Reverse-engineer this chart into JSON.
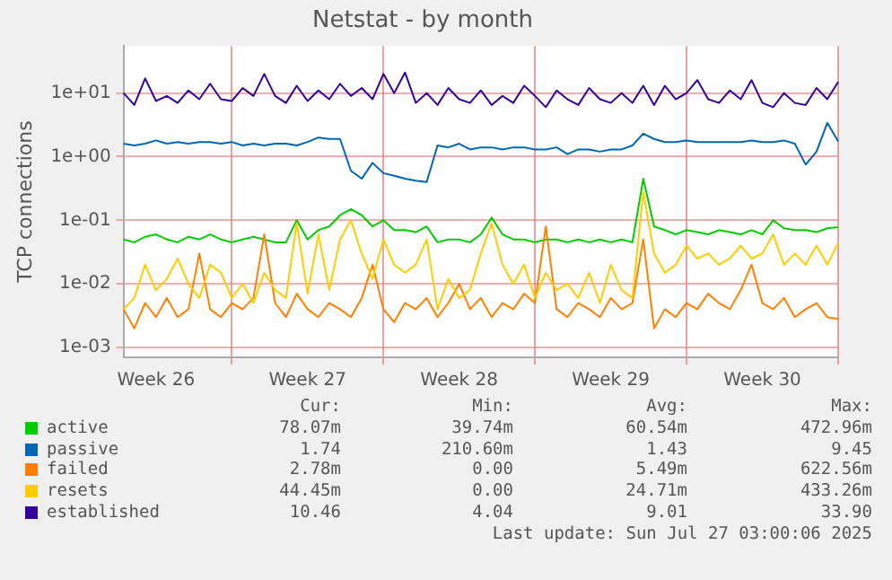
{
  "chart_data": {
    "type": "line",
    "title": "Netstat - by month",
    "ylabel": "TCP connections",
    "log": "y",
    "grid": true,
    "legend": "bottom",
    "marker": "none",
    "line_style": "solid",
    "categories": [
      null,
      null,
      null,
      "Week 26",
      null,
      null,
      null,
      null,
      null,
      null,
      null,
      null,
      null,
      null,
      null,
      null,
      null,
      "Week 27",
      null,
      null,
      null,
      null,
      null,
      null,
      null,
      null,
      null,
      null,
      null,
      null,
      null,
      "Week 28",
      null,
      null,
      null,
      null,
      null,
      null,
      null,
      null,
      null,
      null,
      null,
      null,
      null,
      "Week 29",
      null,
      null,
      null,
      null,
      null,
      null,
      null,
      null,
      null,
      null,
      null,
      null,
      null,
      "Week 30",
      null,
      null,
      null,
      null,
      null,
      null,
      null
    ],
    "ylim": [
      0.0007,
      55
    ],
    "yticks": [
      {
        "value": 0.001,
        "label": "1e-03"
      },
      {
        "value": 0.01,
        "label": "1e-02"
      },
      {
        "value": 0.1,
        "label": "1e-01"
      },
      {
        "value": 1,
        "label": "1e+00"
      },
      {
        "value": 10,
        "label": "1e+01"
      }
    ],
    "series": [
      {
        "name": "active",
        "color": "#00cc00",
        "values": [
          0.05,
          0.045,
          0.055,
          0.06,
          0.05,
          0.045,
          0.055,
          0.05,
          0.06,
          0.05,
          0.045,
          0.05,
          0.055,
          0.05,
          0.045,
          0.045,
          0.1,
          0.05,
          0.07,
          0.08,
          0.12,
          0.15,
          0.12,
          0.08,
          0.1,
          0.07,
          0.07,
          0.065,
          0.08,
          0.045,
          0.05,
          0.05,
          0.045,
          0.06,
          0.11,
          0.06,
          0.05,
          0.05,
          0.045,
          0.05,
          0.05,
          0.045,
          0.05,
          0.045,
          0.05,
          0.045,
          0.05,
          0.045,
          0.45,
          0.08,
          0.07,
          0.06,
          0.07,
          0.065,
          0.06,
          0.07,
          0.065,
          0.06,
          0.07,
          0.06,
          0.1,
          0.075,
          0.07,
          0.07,
          0.065,
          0.075,
          0.078
        ]
      },
      {
        "name": "passive",
        "color": "#0066b3",
        "values": [
          1.6,
          1.5,
          1.6,
          1.8,
          1.6,
          1.7,
          1.6,
          1.7,
          1.7,
          1.6,
          1.7,
          1.5,
          1.6,
          1.5,
          1.6,
          1.6,
          1.5,
          1.7,
          2.0,
          1.9,
          1.9,
          0.6,
          0.45,
          0.8,
          0.55,
          0.5,
          0.45,
          0.42,
          0.4,
          1.5,
          1.4,
          1.6,
          1.3,
          1.4,
          1.4,
          1.3,
          1.4,
          1.4,
          1.3,
          1.3,
          1.4,
          1.1,
          1.3,
          1.3,
          1.2,
          1.3,
          1.3,
          1.5,
          2.3,
          1.9,
          1.7,
          1.7,
          1.8,
          1.7,
          1.7,
          1.7,
          1.7,
          1.7,
          1.8,
          1.7,
          1.7,
          1.8,
          1.6,
          0.75,
          1.2,
          3.4,
          1.74
        ]
      },
      {
        "name": "failed",
        "color": "#ff8000",
        "values": [
          0.004,
          0.002,
          0.005,
          0.003,
          0.006,
          0.003,
          0.004,
          0.03,
          0.004,
          0.003,
          0.005,
          0.004,
          0.006,
          0.06,
          0.005,
          0.003,
          0.007,
          0.004,
          0.003,
          0.005,
          0.004,
          0.003,
          0.006,
          0.02,
          0.004,
          0.0025,
          0.005,
          0.004,
          0.006,
          0.003,
          0.005,
          0.01,
          0.004,
          0.006,
          0.003,
          0.005,
          0.004,
          0.007,
          0.005,
          0.08,
          0.004,
          0.003,
          0.005,
          0.004,
          0.003,
          0.006,
          0.004,
          0.005,
          0.05,
          0.002,
          0.004,
          0.003,
          0.005,
          0.004,
          0.007,
          0.005,
          0.004,
          0.008,
          0.02,
          0.005,
          0.004,
          0.006,
          0.003,
          0.004,
          0.005,
          0.003,
          0.0028
        ]
      },
      {
        "name": "resets",
        "color": "#ffcc00",
        "values": [
          0.004,
          0.006,
          0.02,
          0.008,
          0.012,
          0.025,
          0.01,
          0.006,
          0.02,
          0.015,
          0.006,
          0.01,
          0.005,
          0.015,
          0.008,
          0.006,
          0.09,
          0.007,
          0.06,
          0.008,
          0.05,
          0.1,
          0.03,
          0.012,
          0.05,
          0.02,
          0.015,
          0.02,
          0.05,
          0.004,
          0.012,
          0.006,
          0.008,
          0.03,
          0.09,
          0.02,
          0.01,
          0.02,
          0.006,
          0.015,
          0.008,
          0.01,
          0.006,
          0.015,
          0.005,
          0.02,
          0.008,
          0.006,
          0.28,
          0.03,
          0.015,
          0.02,
          0.04,
          0.025,
          0.03,
          0.02,
          0.025,
          0.04,
          0.025,
          0.03,
          0.06,
          0.02,
          0.03,
          0.02,
          0.04,
          0.02,
          0.044
        ]
      },
      {
        "name": "established",
        "color": "#330099",
        "values": [
          10,
          6.5,
          17,
          7.5,
          9,
          7,
          11,
          8,
          14,
          8,
          7.5,
          12,
          9,
          20,
          9,
          7,
          13,
          7.5,
          11,
          8,
          14,
          9,
          12,
          8,
          20,
          10,
          21,
          7,
          10,
          6.5,
          12,
          8,
          7,
          11,
          6.5,
          9,
          7,
          13,
          9,
          6,
          11,
          8,
          6.5,
          12,
          8,
          7,
          10,
          7,
          13,
          6.5,
          13,
          8,
          10,
          16,
          8,
          7,
          11,
          8,
          16,
          7,
          6,
          10,
          7,
          6.5,
          12,
          8,
          15
        ]
      }
    ],
    "annotations": [
      "Cur:",
      "Min:",
      "Avg:",
      "Max:",
      "78.07m",
      "39.74m",
      "60.54m",
      "472.96m",
      "1.74",
      "210.60m",
      "1.43",
      "9.45",
      "2.78m",
      "0.00",
      "5.49m",
      "622.56m",
      "44.45m",
      "0.00",
      "24.71m",
      "433.26m",
      "10.46",
      "4.04",
      "9.01",
      "33.90",
      "Last update: Sun Jul 27 03:00:06 2025"
    ]
  }
}
